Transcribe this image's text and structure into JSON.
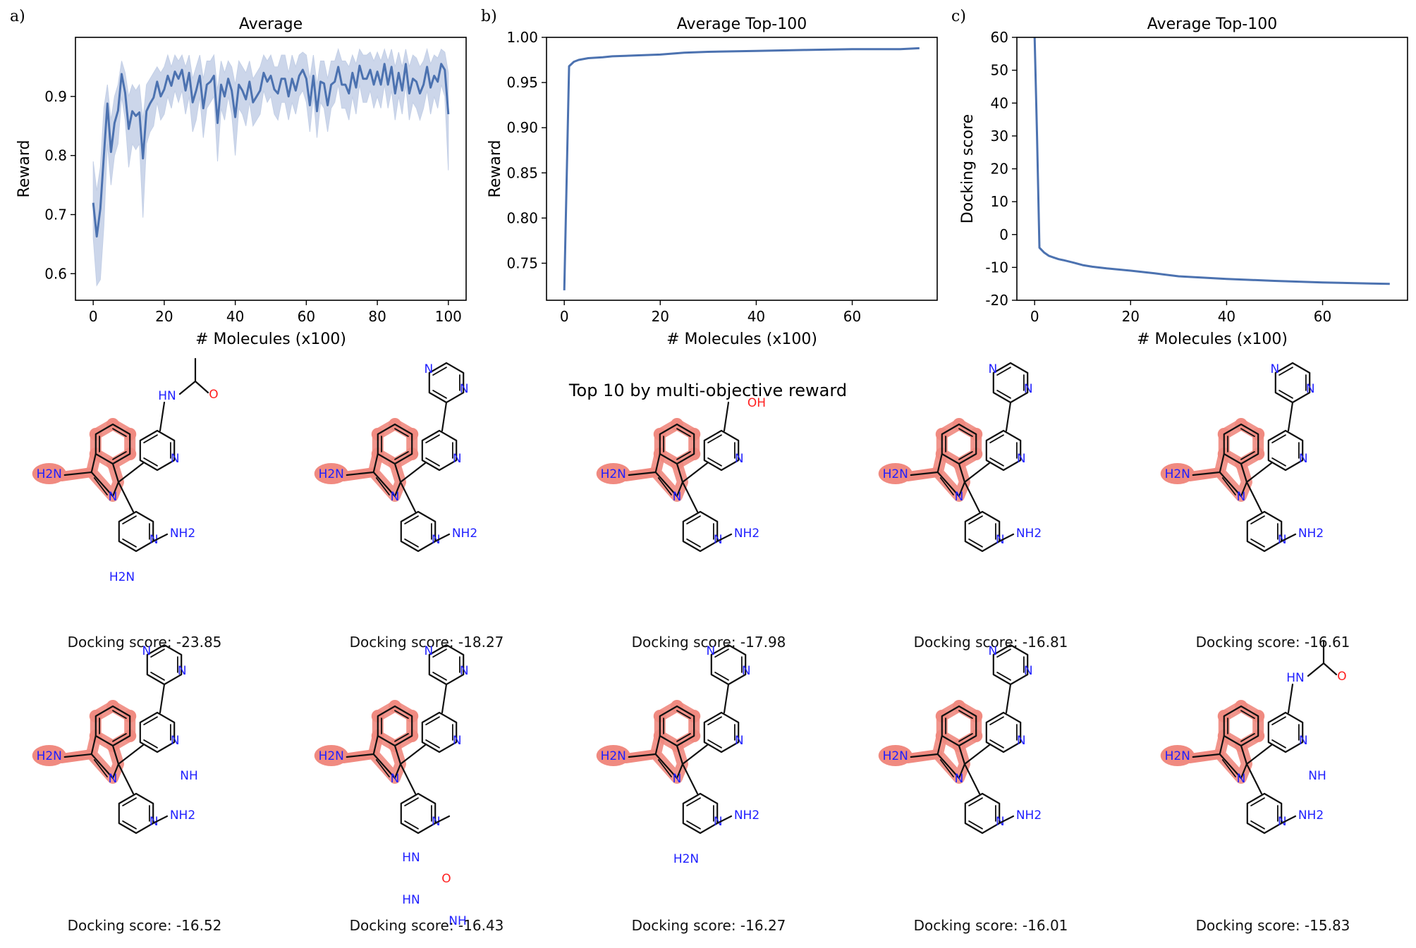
{
  "figure": {
    "section_title": "Top 10 by multi-objective reward",
    "series_color": "#4c72b0",
    "band_color": "#c3cfe6",
    "highlight_color": "#f08a80",
    "nitrogen_color": "#2020ff",
    "oxygen_color": "#ff1f1f"
  },
  "chart_data": [
    {
      "panel": "a)",
      "type": "line",
      "title": "Average",
      "xlabel": "# Molecules (x100)",
      "ylabel": "Reward",
      "xlim": [
        -5,
        105
      ],
      "ylim": [
        0.555,
        1.0
      ],
      "xticks": [
        0,
        20,
        40,
        60,
        80,
        100
      ],
      "yticks": [
        0.6,
        0.7,
        0.8,
        0.9
      ],
      "grid": false,
      "series": [
        {
          "x": [
            0,
            1,
            2,
            3,
            4,
            5,
            6,
            7,
            8,
            9,
            10,
            11,
            12,
            13,
            14,
            15,
            16,
            17,
            18,
            19,
            20,
            21,
            22,
            23,
            24,
            25,
            26,
            27,
            28,
            29,
            30,
            31,
            32,
            33,
            34,
            35,
            36,
            37,
            38,
            39,
            40,
            41,
            42,
            43,
            44,
            45,
            46,
            47,
            48,
            49,
            50,
            51,
            52,
            53,
            54,
            55,
            56,
            57,
            58,
            59,
            60,
            61,
            62,
            63,
            64,
            65,
            66,
            67,
            68,
            69,
            70,
            71,
            72,
            73,
            74,
            75,
            76,
            77,
            78,
            79,
            80,
            81,
            82,
            83,
            84,
            85,
            86,
            87,
            88,
            89,
            90,
            91,
            92,
            93,
            94,
            95,
            96,
            97,
            98,
            99,
            100
          ],
          "y": [
            0.72,
            0.663,
            0.71,
            0.8,
            0.888,
            0.806,
            0.855,
            0.876,
            0.938,
            0.906,
            0.845,
            0.875,
            0.867,
            0.873,
            0.795,
            0.875,
            0.888,
            0.898,
            0.925,
            0.9,
            0.912,
            0.935,
            0.918,
            0.942,
            0.93,
            0.945,
            0.91,
            0.94,
            0.89,
            0.91,
            0.935,
            0.88,
            0.92,
            0.925,
            0.935,
            0.855,
            0.92,
            0.9,
            0.93,
            0.91,
            0.865,
            0.92,
            0.91,
            0.895,
            0.925,
            0.89,
            0.9,
            0.91,
            0.94,
            0.925,
            0.935,
            0.912,
            0.905,
            0.93,
            0.93,
            0.9,
            0.93,
            0.91,
            0.935,
            0.945,
            0.93,
            0.885,
            0.935,
            0.875,
            0.925,
            0.922,
            0.885,
            0.92,
            0.925,
            0.95,
            0.92,
            0.92,
            0.905,
            0.94,
            0.915,
            0.952,
            0.93,
            0.93,
            0.945,
            0.92,
            0.942,
            0.92,
            0.955,
            0.92,
            0.95,
            0.905,
            0.94,
            0.91,
            0.955,
            0.905,
            0.93,
            0.925,
            0.905,
            0.92,
            0.95,
            0.915,
            0.935,
            0.925,
            0.955,
            0.945,
            0.87
          ],
          "lower": [
            0.66,
            0.58,
            0.59,
            0.68,
            0.82,
            0.75,
            0.8,
            0.82,
            0.9,
            0.86,
            0.78,
            0.82,
            0.81,
            0.82,
            0.695,
            0.82,
            0.84,
            0.85,
            0.89,
            0.86,
            0.87,
            0.9,
            0.88,
            0.91,
            0.89,
            0.91,
            0.87,
            0.9,
            0.84,
            0.86,
            0.9,
            0.83,
            0.88,
            0.89,
            0.9,
            0.79,
            0.88,
            0.86,
            0.9,
            0.87,
            0.8,
            0.88,
            0.87,
            0.85,
            0.89,
            0.85,
            0.86,
            0.87,
            0.91,
            0.89,
            0.9,
            0.87,
            0.86,
            0.89,
            0.89,
            0.86,
            0.89,
            0.87,
            0.9,
            0.91,
            0.89,
            0.84,
            0.9,
            0.83,
            0.89,
            0.88,
            0.84,
            0.88,
            0.89,
            0.92,
            0.88,
            0.88,
            0.86,
            0.9,
            0.87,
            0.92,
            0.89,
            0.89,
            0.91,
            0.88,
            0.9,
            0.88,
            0.92,
            0.88,
            0.91,
            0.86,
            0.9,
            0.87,
            0.92,
            0.86,
            0.89,
            0.88,
            0.86,
            0.88,
            0.91,
            0.87,
            0.9,
            0.88,
            0.92,
            0.9,
            0.775
          ],
          "upper": [
            0.79,
            0.74,
            0.78,
            0.88,
            0.92,
            0.86,
            0.9,
            0.92,
            0.96,
            0.94,
            0.9,
            0.92,
            0.91,
            0.92,
            0.86,
            0.92,
            0.93,
            0.94,
            0.95,
            0.94,
            0.95,
            0.97,
            0.95,
            0.97,
            0.96,
            0.97,
            0.95,
            0.97,
            0.93,
            0.95,
            0.97,
            0.93,
            0.96,
            0.96,
            0.97,
            0.91,
            0.96,
            0.94,
            0.96,
            0.95,
            0.92,
            0.96,
            0.95,
            0.94,
            0.96,
            0.93,
            0.94,
            0.95,
            0.97,
            0.96,
            0.97,
            0.95,
            0.95,
            0.97,
            0.97,
            0.94,
            0.97,
            0.95,
            0.97,
            0.975,
            0.97,
            0.93,
            0.97,
            0.92,
            0.96,
            0.96,
            0.93,
            0.96,
            0.96,
            0.98,
            0.96,
            0.96,
            0.95,
            0.97,
            0.955,
            0.98,
            0.97,
            0.97,
            0.975,
            0.96,
            0.975,
            0.96,
            0.98,
            0.96,
            0.98,
            0.95,
            0.975,
            0.95,
            0.98,
            0.95,
            0.97,
            0.965,
            0.95,
            0.96,
            0.98,
            0.955,
            0.97,
            0.965,
            0.98,
            0.975,
            0.94
          ]
        }
      ]
    },
    {
      "panel": "b)",
      "type": "line",
      "title": "Average Top-100",
      "xlabel": "# Molecules (x100)",
      "ylabel": "Reward",
      "xlim": [
        -3.7,
        77.7
      ],
      "ylim": [
        0.709,
        1.0
      ],
      "xticks": [
        0,
        20,
        40,
        60
      ],
      "yticks": [
        0.75,
        0.8,
        0.85,
        0.9,
        0.95,
        1.0
      ],
      "ytick_labels": [
        "0.75",
        "0.80",
        "0.85",
        "0.90",
        "0.95",
        "1.00"
      ],
      "grid": false,
      "series": [
        {
          "x": [
            0,
            1,
            2,
            3,
            5,
            8,
            10,
            15,
            20,
            25,
            30,
            40,
            50,
            60,
            70,
            74
          ],
          "y": [
            0.72,
            0.968,
            0.973,
            0.975,
            0.977,
            0.978,
            0.979,
            0.98,
            0.981,
            0.983,
            0.984,
            0.985,
            0.986,
            0.987,
            0.987,
            0.988
          ]
        }
      ]
    },
    {
      "panel": "c)",
      "type": "line",
      "title": "Average Top-100",
      "xlabel": "# Molecules (x100)",
      "ylabel": "Docking score",
      "xlim": [
        -3.7,
        77.7
      ],
      "ylim": [
        -20,
        60
      ],
      "xticks": [
        0,
        20,
        40,
        60
      ],
      "yticks": [
        -20,
        -10,
        0,
        10,
        20,
        30,
        40,
        50,
        60
      ],
      "grid": false,
      "series": [
        {
          "x": [
            0,
            0.5,
            1,
            2,
            3,
            4,
            5,
            6,
            8,
            10,
            12,
            15,
            20,
            25,
            30,
            40,
            50,
            60,
            70,
            74
          ],
          "y": [
            60,
            30,
            -4,
            -5.5,
            -6.5,
            -7,
            -7.5,
            -7.8,
            -8.5,
            -9.3,
            -9.8,
            -10.3,
            -11,
            -11.8,
            -12.7,
            -13.5,
            -14.1,
            -14.6,
            -14.9,
            -15
          ]
        }
      ]
    }
  ],
  "molecules": [
    {
      "label": "Docking score: -23.85"
    },
    {
      "label": "Docking score: -18.27"
    },
    {
      "label": "Docking score: -17.98"
    },
    {
      "label": "Docking score: -16.81"
    },
    {
      "label": "Docking score: -16.61"
    },
    {
      "label": "Docking score: -16.52"
    },
    {
      "label": "Docking score: -16.43"
    },
    {
      "label": "Docking score: -16.27"
    },
    {
      "label": "Docking score: -16.01"
    },
    {
      "label": "Docking score: -15.83"
    }
  ],
  "atom_labels": {
    "amine": "H2N",
    "amine_right": "NH2",
    "nitrogen": "N",
    "nh": "NH",
    "hn": "HN",
    "oxygen": "O",
    "hydroxyl": "OH"
  }
}
